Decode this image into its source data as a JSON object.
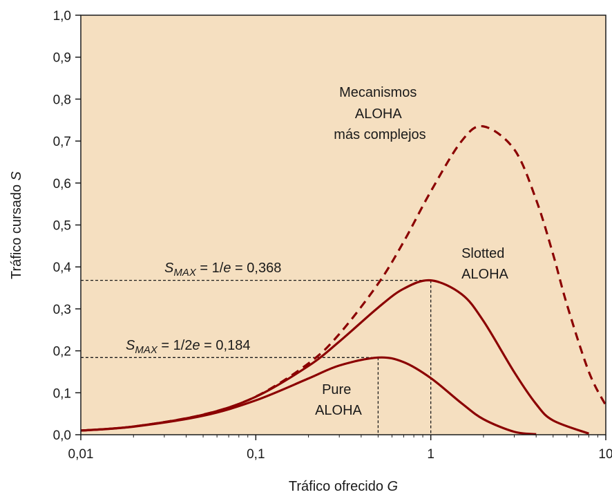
{
  "chart_data": {
    "type": "line",
    "xscale": "log",
    "xlim": [
      0.01,
      10
    ],
    "ylim": [
      0,
      1
    ],
    "xticks": [
      {
        "value": 0.01,
        "label": "0,01"
      },
      {
        "value": 0.1,
        "label": "0,1"
      },
      {
        "value": 1,
        "label": "1"
      },
      {
        "value": 10,
        "label": "10"
      }
    ],
    "yticks": [
      {
        "value": 0.0,
        "label": "0,0"
      },
      {
        "value": 0.1,
        "label": "0,1"
      },
      {
        "value": 0.2,
        "label": "0,2"
      },
      {
        "value": 0.3,
        "label": "0,3"
      },
      {
        "value": 0.4,
        "label": "0,4"
      },
      {
        "value": 0.5,
        "label": "0,5"
      },
      {
        "value": 0.6,
        "label": "0,6"
      },
      {
        "value": 0.7,
        "label": "0,7"
      },
      {
        "value": 0.8,
        "label": "0,8"
      },
      {
        "value": 0.9,
        "label": "0,9"
      },
      {
        "value": 1.0,
        "label": "1,0"
      }
    ],
    "xlabel": {
      "text": "Tráfico ofrecido ",
      "var": "G"
    },
    "ylabel": {
      "text": "Tráfico cursado ",
      "var": "S"
    },
    "plot_background": "#f5dfc0",
    "series_color": "#8b0000",
    "grid": false,
    "series": [
      {
        "name": "Pure ALOHA",
        "style": "solid",
        "x": [
          0.01,
          0.02,
          0.05,
          0.1,
          0.2,
          0.3,
          0.5,
          0.7,
          1,
          1.5,
          2,
          3,
          4
        ],
        "y": [
          0.0098,
          0.0192,
          0.0452,
          0.0819,
          0.134,
          0.165,
          0.184,
          0.173,
          0.135,
          0.075,
          0.037,
          0.007,
          0.0013
        ]
      },
      {
        "name": "Slotted ALOHA",
        "style": "solid",
        "x": [
          0.01,
          0.02,
          0.05,
          0.1,
          0.2,
          0.3,
          0.5,
          0.7,
          1,
          1.5,
          2,
          3,
          4,
          5,
          8
        ],
        "y": [
          0.0099,
          0.0196,
          0.0476,
          0.0905,
          0.164,
          0.222,
          0.303,
          0.348,
          0.368,
          0.335,
          0.271,
          0.149,
          0.073,
          0.034,
          0.0027
        ]
      },
      {
        "name": "Mecanismos ALOHA más complejos",
        "style": "dashed",
        "x": [
          0.01,
          0.02,
          0.05,
          0.1,
          0.2,
          0.3,
          0.5,
          0.7,
          1,
          1.5,
          2,
          3,
          4,
          5,
          6,
          8,
          10
        ],
        "y": [
          0.0099,
          0.0196,
          0.048,
          0.091,
          0.17,
          0.24,
          0.36,
          0.46,
          0.58,
          0.7,
          0.735,
          0.68,
          0.56,
          0.43,
          0.31,
          0.15,
          0.07
        ]
      }
    ],
    "reference_lines": [
      {
        "x": 1,
        "y": 0.368
      },
      {
        "x": 0.5,
        "y": 0.184
      }
    ],
    "annotations": {
      "smax_slotted": {
        "prefix": "S",
        "sub": "MAX",
        "mid": " = 1/",
        "var": "e",
        "suffix": " = 0,368"
      },
      "smax_pure": {
        "prefix": "S",
        "sub": "MAX",
        "mid": " = 1/2",
        "var": "e",
        "suffix": " = 0,184"
      },
      "complex_label": [
        "Mecanismos",
        "ALOHA",
        "más complejos"
      ],
      "slotted_label": [
        "Slotted",
        "ALOHA"
      ],
      "pure_label": [
        "Pure",
        "ALOHA"
      ]
    }
  }
}
